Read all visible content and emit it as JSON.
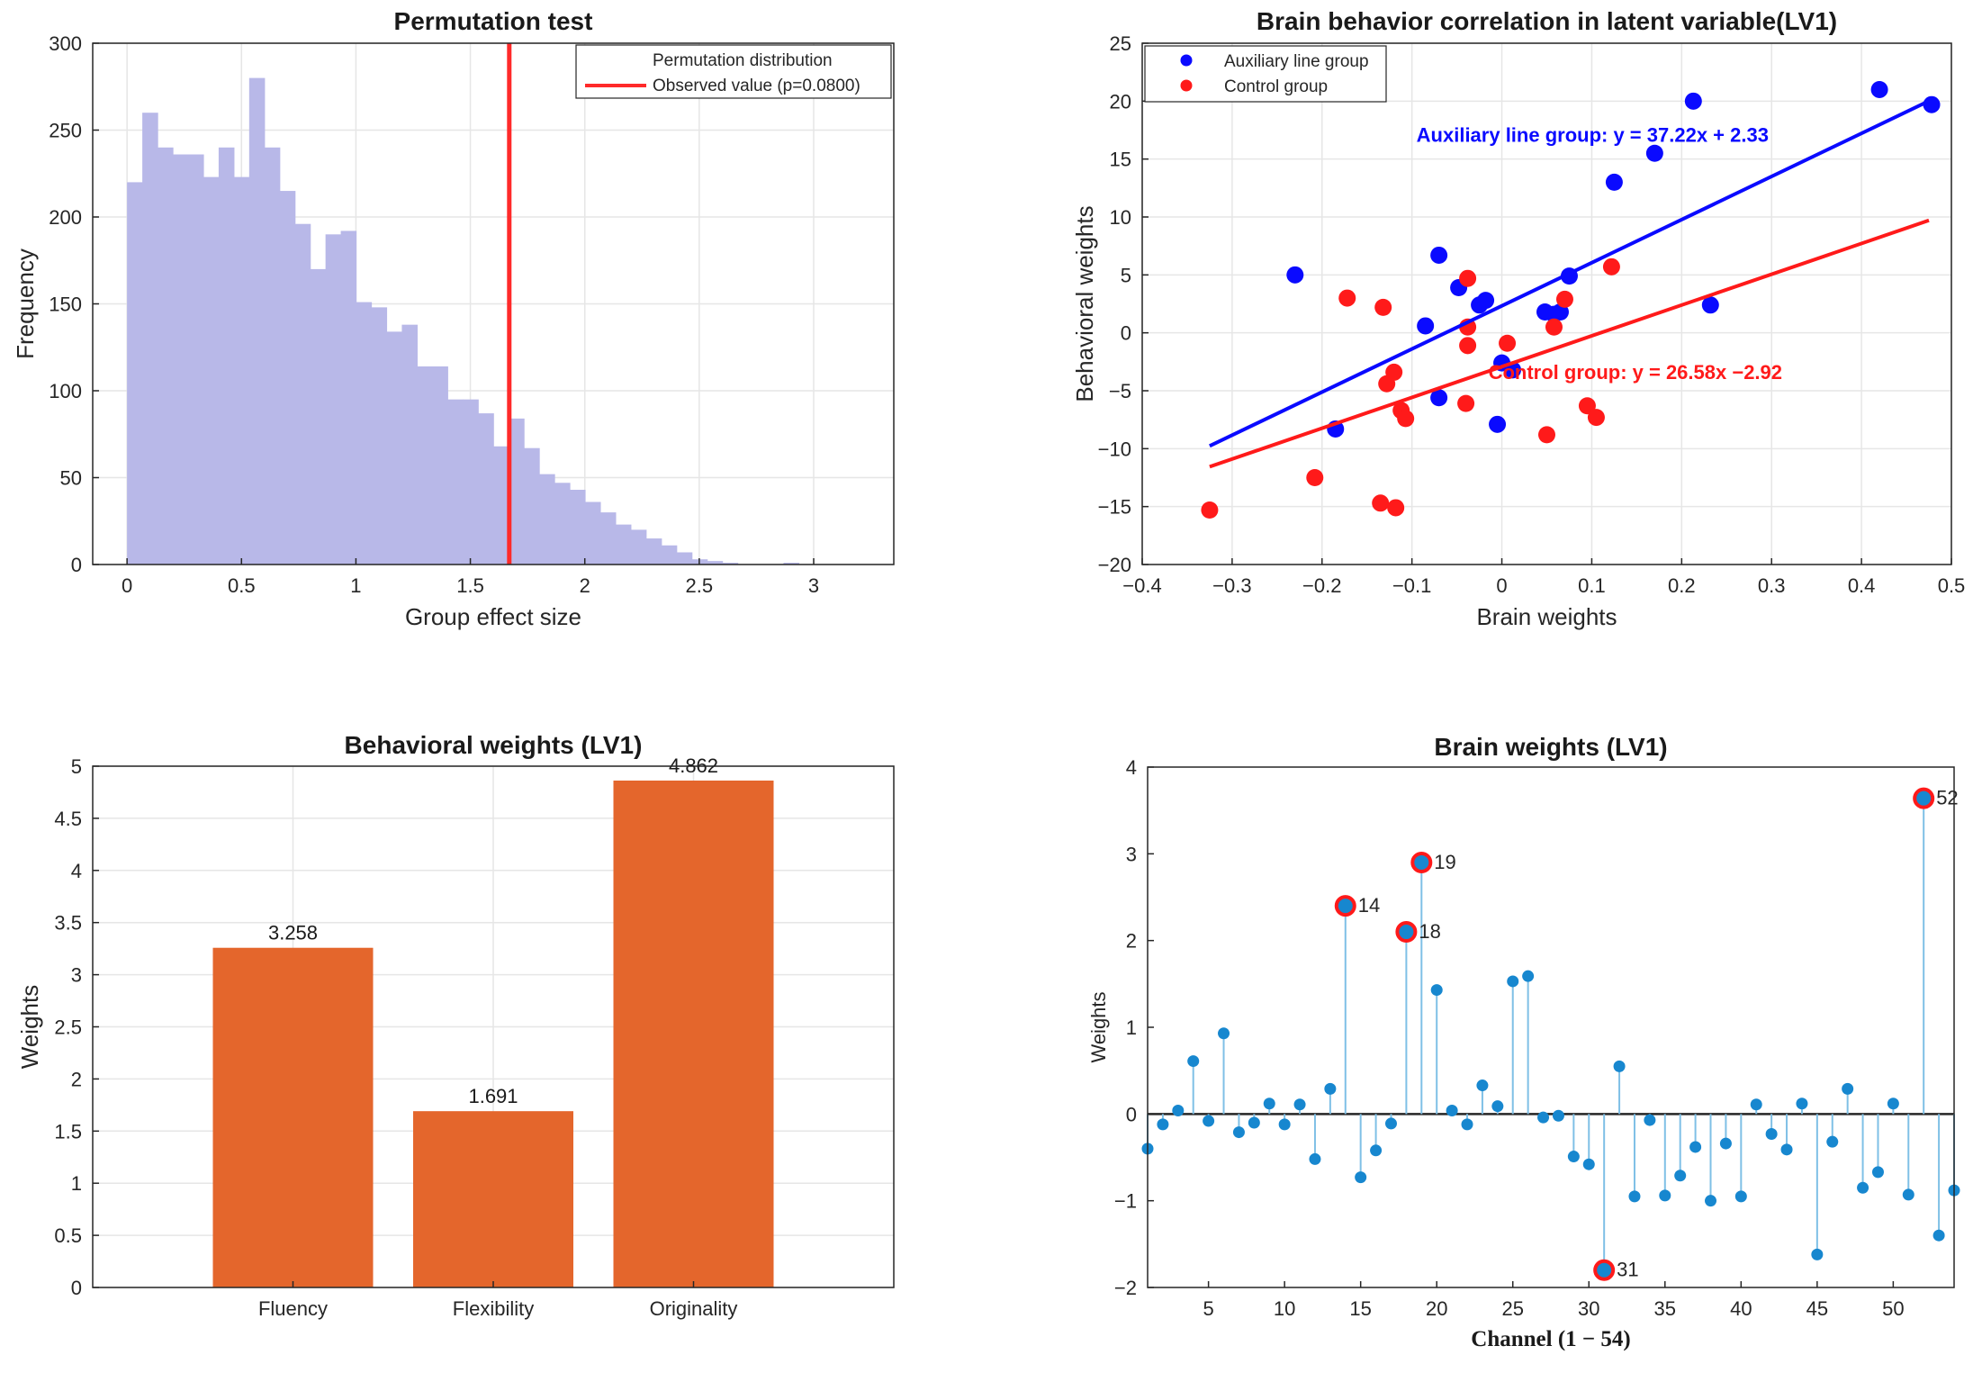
{
  "figures": [
    {
      "chart_data": {
        "type": "bar",
        "title": "Permutation test",
        "xlabel": "Group effect size",
        "ylabel": "Frequency",
        "xlim": [
          -0.15,
          3.35
        ],
        "ylim": [
          0,
          300
        ],
        "xticks": [
          "0",
          "0.5",
          "1",
          "1.5",
          "2",
          "2.5",
          "3"
        ],
        "xtick_values": [
          0,
          0.5,
          1,
          1.5,
          2,
          2.5,
          3
        ],
        "yticks": [
          "0",
          "50",
          "100",
          "150",
          "200",
          "250",
          "300"
        ],
        "ytick_values": [
          0,
          50,
          100,
          150,
          200,
          250,
          300
        ],
        "grid": true,
        "legend_position": "top-right",
        "series": [
          {
            "name": "Permutation distribution",
            "color": "#b8b8e8",
            "bin_start": 0,
            "bin_width": 0.0667,
            "values": [
              220,
              260,
              240,
              236,
              236,
              223,
              240,
              223,
              280,
              240,
              215,
              196,
              170,
              190,
              192,
              151,
              148,
              134,
              138,
              114,
              114,
              95,
              95,
              87,
              68,
              84,
              67,
              52,
              47,
              43,
              36,
              30,
              23,
              20,
              15,
              11,
              7,
              3,
              2,
              1,
              0,
              0,
              0,
              1
            ]
          },
          {
            "name": "Observed value (p=0.0800)",
            "color": "#ff2a2a",
            "x": 1.67
          }
        ]
      }
    },
    {
      "chart_data": {
        "type": "scatter",
        "title": "Brain behavior correlation in latent variable(LV1)",
        "xlabel": "Brain weights",
        "ylabel": "Behavioral weights",
        "xlim": [
          -0.4,
          0.5
        ],
        "ylim": [
          -20,
          25
        ],
        "xticks": [
          "−0.4",
          "−0.3",
          "−0.2",
          "−0.1",
          "0",
          "0.1",
          "0.2",
          "0.3",
          "0.4",
          "0.5"
        ],
        "xtick_values": [
          -0.4,
          -0.3,
          -0.2,
          -0.1,
          0,
          0.1,
          0.2,
          0.3,
          0.4,
          0.5
        ],
        "yticks": [
          "−20",
          "−15",
          "−10",
          "−5",
          "0",
          "5",
          "10",
          "15",
          "20",
          "25"
        ],
        "ytick_values": [
          -20,
          -15,
          -10,
          -5,
          0,
          5,
          10,
          15,
          20,
          25
        ],
        "grid": true,
        "legend_position": "top-left",
        "series": [
          {
            "name": "Auxiliary line group",
            "color": "#0a0aff",
            "fit": {
              "slope": 37.22,
              "intercept": 2.33,
              "x_range": [
                -0.325,
                0.475
              ]
            },
            "annotation": "Auxiliary line group: y = 37.22x + 2.33",
            "annotation_pos": [
              -0.095,
              16.5
            ],
            "points": [
              [
                -0.23,
                5.0
              ],
              [
                -0.185,
                -8.3
              ],
              [
                -0.085,
                0.6
              ],
              [
                -0.07,
                6.7
              ],
              [
                -0.07,
                -5.6
              ],
              [
                -0.048,
                3.9
              ],
              [
                -0.025,
                2.4
              ],
              [
                -0.018,
                2.8
              ],
              [
                -0.005,
                -7.9
              ],
              [
                0.0,
                -2.6
              ],
              [
                0.012,
                -3.2
              ],
              [
                0.048,
                1.8
              ],
              [
                0.058,
                1.6
              ],
              [
                0.065,
                1.8
              ],
              [
                0.075,
                4.9
              ],
              [
                0.125,
                13.0
              ],
              [
                0.17,
                15.5
              ],
              [
                0.213,
                20.0
              ],
              [
                0.232,
                2.4
              ],
              [
                0.42,
                21.0
              ],
              [
                0.478,
                19.7
              ]
            ]
          },
          {
            "name": "Control group",
            "color": "#ff1a1a",
            "fit": {
              "slope": 26.58,
              "intercept": -2.92,
              "x_range": [
                -0.325,
                0.475
              ]
            },
            "annotation": "Control group: y = 26.58x −2.92",
            "annotation_pos": [
              -0.015,
              -4.0
            ],
            "points": [
              [
                -0.325,
                -15.3
              ],
              [
                -0.208,
                -12.5
              ],
              [
                -0.172,
                3.0
              ],
              [
                -0.135,
                -14.7
              ],
              [
                -0.132,
                2.2
              ],
              [
                -0.128,
                -4.4
              ],
              [
                -0.12,
                -3.4
              ],
              [
                -0.118,
                -15.1
              ],
              [
                -0.112,
                -6.7
              ],
              [
                -0.107,
                -7.4
              ],
              [
                -0.04,
                -6.1
              ],
              [
                -0.038,
                4.7
              ],
              [
                -0.038,
                0.5
              ],
              [
                -0.038,
                -1.1
              ],
              [
                0.006,
                -0.9
              ],
              [
                0.05,
                -8.8
              ],
              [
                0.058,
                0.5
              ],
              [
                0.07,
                2.9
              ],
              [
                0.095,
                -6.3
              ],
              [
                0.105,
                -7.3
              ],
              [
                0.122,
                5.7
              ]
            ]
          }
        ]
      }
    },
    {
      "chart_data": {
        "type": "bar",
        "title": "Behavioral weights (LV1)",
        "xlabel": "",
        "ylabel": "Weights",
        "categories": [
          "Fluency",
          "Flexibility",
          "Originality"
        ],
        "values": [
          3.258,
          1.691,
          4.862
        ],
        "labels": [
          "3.258",
          "1.691",
          "4.862"
        ],
        "color": "#e4662c",
        "xlim": [
          0,
          4
        ],
        "ylim": [
          0,
          5
        ],
        "yticks": [
          "0",
          "0.5",
          "1",
          "1.5",
          "2",
          "2.5",
          "3",
          "3.5",
          "4",
          "4.5",
          "5"
        ],
        "ytick_values": [
          0,
          0.5,
          1,
          1.5,
          2,
          2.5,
          3,
          3.5,
          4,
          4.5,
          5
        ],
        "grid": true
      }
    },
    {
      "chart_data": {
        "type": "stem",
        "title": "Brain weights (LV1)",
        "xlabel": "Channel (1 − 54)",
        "ylabel": "Weights",
        "xlim": [
          1,
          54
        ],
        "ylim": [
          -2,
          4
        ],
        "xticks": [
          "5",
          "10",
          "15",
          "20",
          "25",
          "30",
          "35",
          "40",
          "45",
          "50"
        ],
        "xtick_values": [
          5,
          10,
          15,
          20,
          25,
          30,
          35,
          40,
          45,
          50
        ],
        "yticks": [
          "−2",
          "−1",
          "0",
          "1",
          "2",
          "3",
          "4"
        ],
        "ytick_values": [
          -2,
          -1,
          0,
          1,
          2,
          3,
          4
        ],
        "grid": false,
        "color": "#1787cf",
        "highlight_color": "#ff1a1a",
        "x": [
          1,
          2,
          3,
          4,
          5,
          6,
          7,
          8,
          9,
          10,
          11,
          12,
          13,
          14,
          15,
          16,
          17,
          18,
          19,
          20,
          21,
          22,
          23,
          24,
          25,
          26,
          27,
          28,
          29,
          30,
          31,
          32,
          33,
          34,
          35,
          36,
          37,
          38,
          39,
          40,
          41,
          42,
          43,
          44,
          45,
          46,
          47,
          48,
          49,
          50,
          51,
          52,
          53,
          54
        ],
        "values": [
          -0.4,
          -0.12,
          0.04,
          0.61,
          -0.08,
          0.93,
          -0.21,
          -0.1,
          0.12,
          -0.12,
          0.11,
          -0.52,
          0.29,
          2.4,
          -0.73,
          -0.42,
          -0.11,
          2.1,
          2.9,
          1.43,
          0.04,
          -0.12,
          0.33,
          0.09,
          1.53,
          1.59,
          -0.04,
          -0.02,
          -0.49,
          -0.58,
          -1.8,
          0.55,
          -0.95,
          -0.07,
          -0.94,
          -0.71,
          -0.38,
          -1.0,
          -0.34,
          -0.95,
          0.11,
          -0.23,
          -0.41,
          0.12,
          -1.62,
          -0.32,
          0.29,
          -0.85,
          -0.67,
          0.12,
          -0.93,
          3.64,
          -1.4,
          -0.88
        ],
        "highlighted": [
          "14",
          "18",
          "19",
          "31",
          "52"
        ]
      }
    }
  ]
}
